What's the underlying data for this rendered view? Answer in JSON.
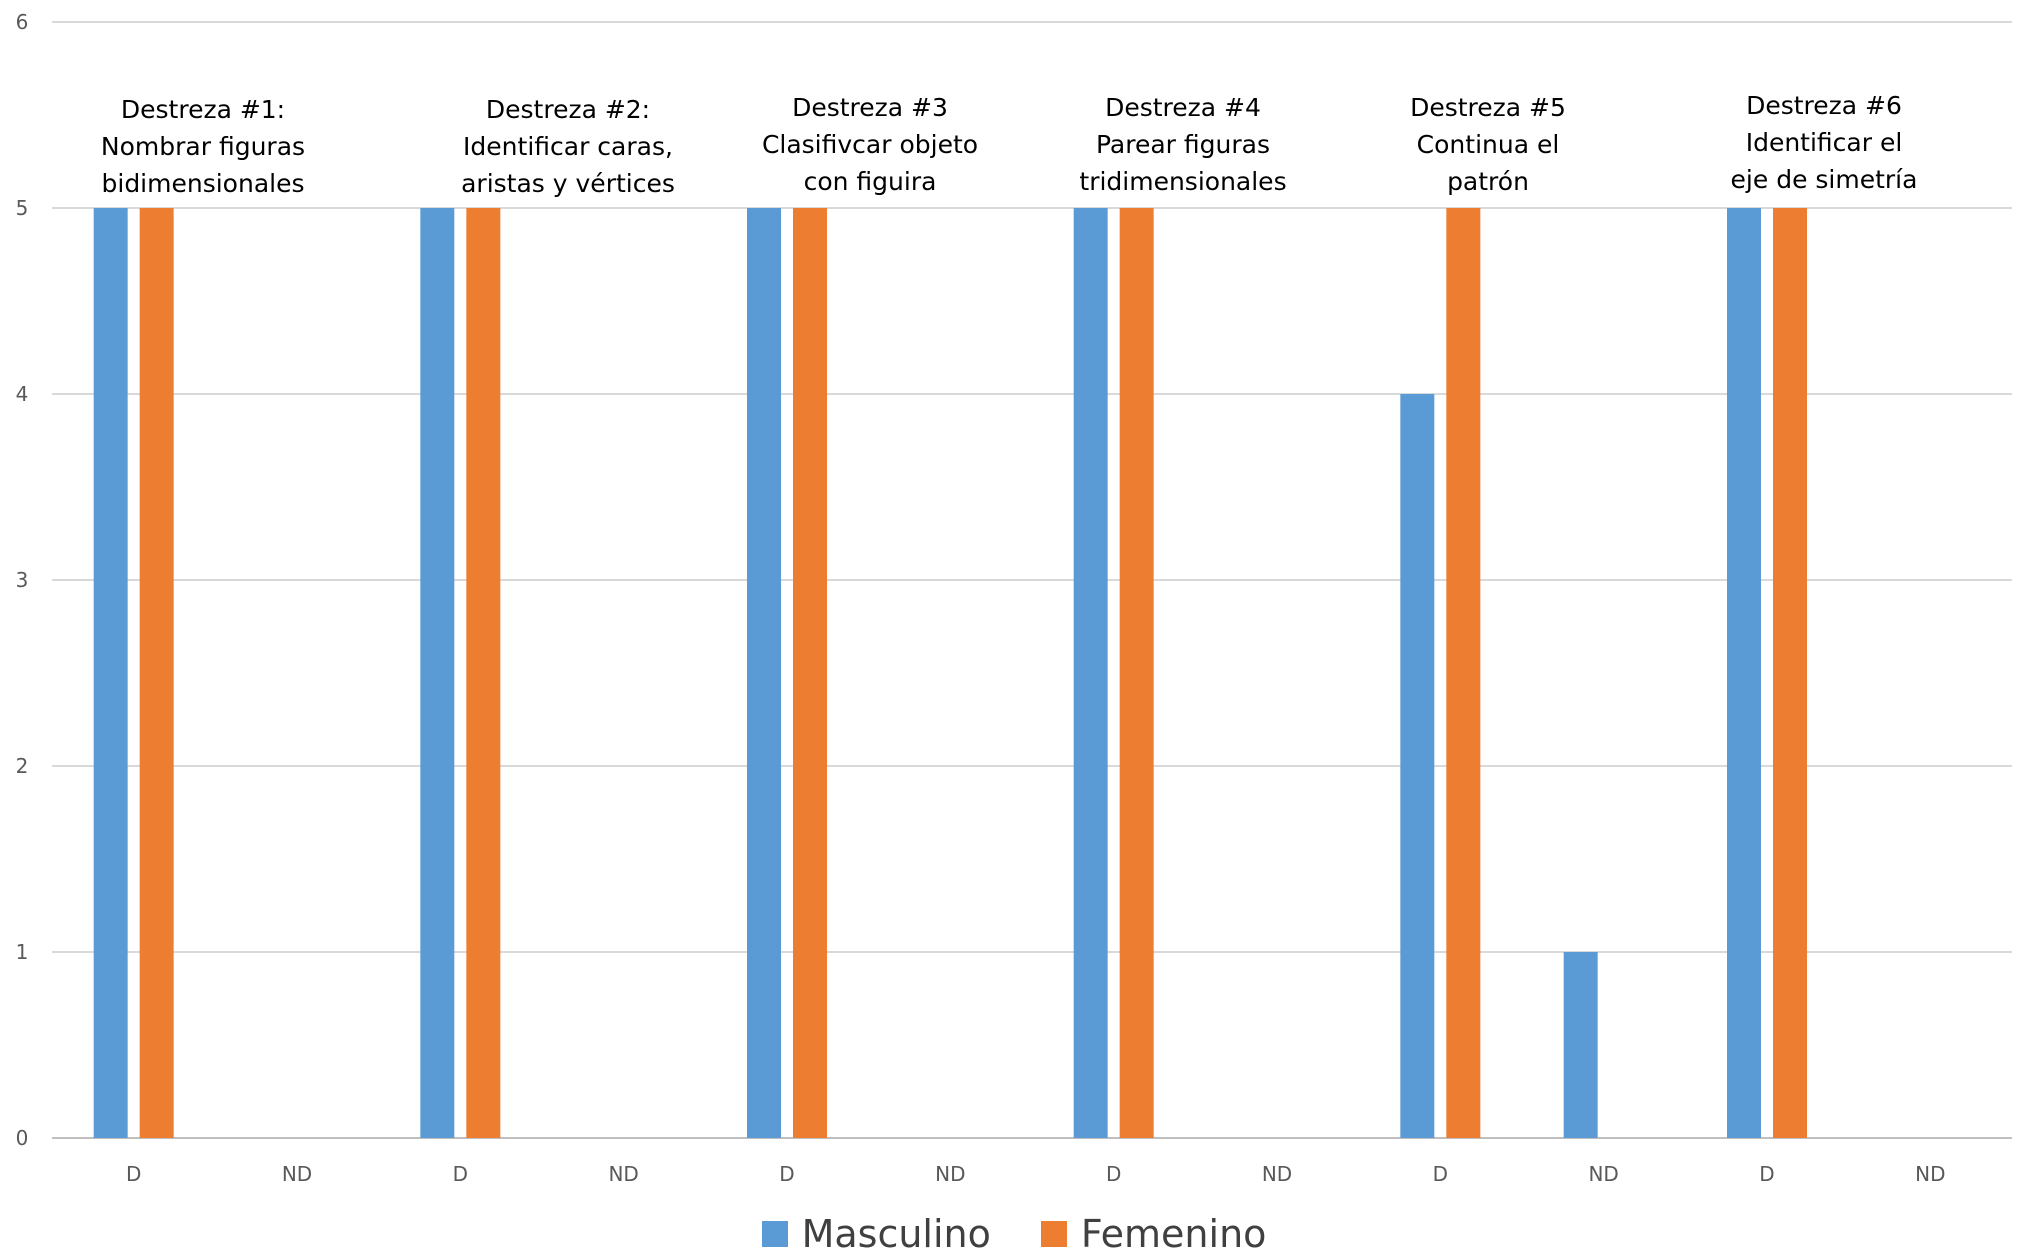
{
  "chart_data": {
    "type": "bar",
    "title": "",
    "xlabel": "",
    "ylabel": "",
    "ylim": [
      0,
      6
    ],
    "yticks": [
      0,
      1,
      2,
      3,
      4,
      5,
      6
    ],
    "grid": true,
    "legend_position": "bottom",
    "categories": [
      "D",
      "ND",
      "D",
      "ND",
      "D",
      "ND",
      "D",
      "ND",
      "D",
      "ND",
      "D",
      "ND"
    ],
    "groups": [
      [
        "Destreza #1:",
        "Nombrar figuras",
        "bidimensionales"
      ],
      [
        "Destreza #2:",
        "Identificar caras,",
        "aristas y vértices"
      ],
      [
        "Destreza #3",
        "Clasifivcar objeto",
        "con figuira"
      ],
      [
        "Destreza #4",
        "Parear figuras",
        "tridimensionales"
      ],
      [
        "Destreza #5",
        "Continua el",
        "patrón"
      ],
      [
        "Destreza #6",
        "Identificar el",
        "eje de simetría"
      ]
    ],
    "series": [
      {
        "name": "Masculino",
        "color": "#5B9BD5",
        "values": [
          5,
          0,
          5,
          0,
          5,
          0,
          5,
          0,
          4,
          1,
          5,
          0
        ]
      },
      {
        "name": "Femenino",
        "color": "#ED7D31",
        "values": [
          5,
          0,
          5,
          0,
          5,
          0,
          5,
          0,
          5,
          0,
          5,
          0
        ]
      }
    ]
  }
}
